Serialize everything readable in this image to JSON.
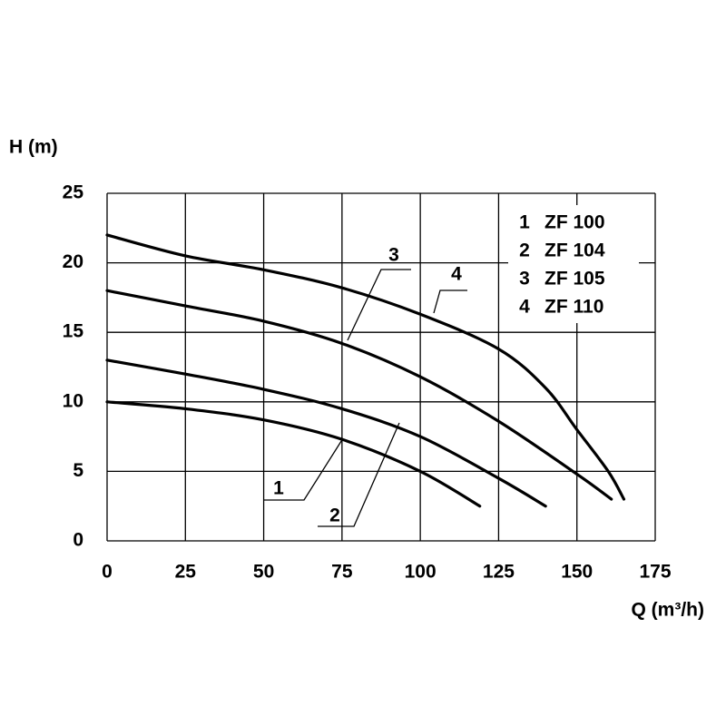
{
  "chart_data": {
    "type": "line",
    "xlabel": "Q (m³/h)",
    "ylabel": "H (m)",
    "xlim": [
      0,
      175
    ],
    "xticks": [
      0,
      25,
      50,
      75,
      100,
      125,
      150,
      175
    ],
    "ylim": [
      0,
      25
    ],
    "yticks": [
      0,
      5,
      10,
      15,
      20,
      25
    ],
    "grid": true,
    "legend": "upper right",
    "series": [
      {
        "label": "1",
        "name": "ZF 100",
        "color": "#000000",
        "x": [
          0,
          25,
          50,
          75,
          100,
          119
        ],
        "values": [
          10,
          9.5,
          8.7,
          7.3,
          5,
          2.5
        ]
      },
      {
        "label": "2",
        "name": "ZF 104",
        "color": "#000000",
        "x": [
          0,
          25,
          50,
          75,
          100,
          125,
          140
        ],
        "values": [
          13,
          12,
          10.9,
          9.5,
          7.5,
          4.5,
          2.5
        ]
      },
      {
        "label": "3",
        "name": "ZF 105",
        "color": "#000000",
        "x": [
          0,
          25,
          50,
          75,
          100,
          125,
          150,
          161
        ],
        "values": [
          18,
          16.9,
          15.8,
          14.2,
          11.8,
          8.6,
          4.8,
          3
        ]
      },
      {
        "label": "4",
        "name": "ZF 110",
        "color": "#000000",
        "x": [
          0,
          25,
          50,
          75,
          100,
          125,
          140,
          150,
          160,
          165
        ],
        "values": [
          22,
          20.5,
          19.5,
          18.2,
          16.3,
          13.8,
          11,
          8,
          5,
          3
        ]
      }
    ]
  }
}
